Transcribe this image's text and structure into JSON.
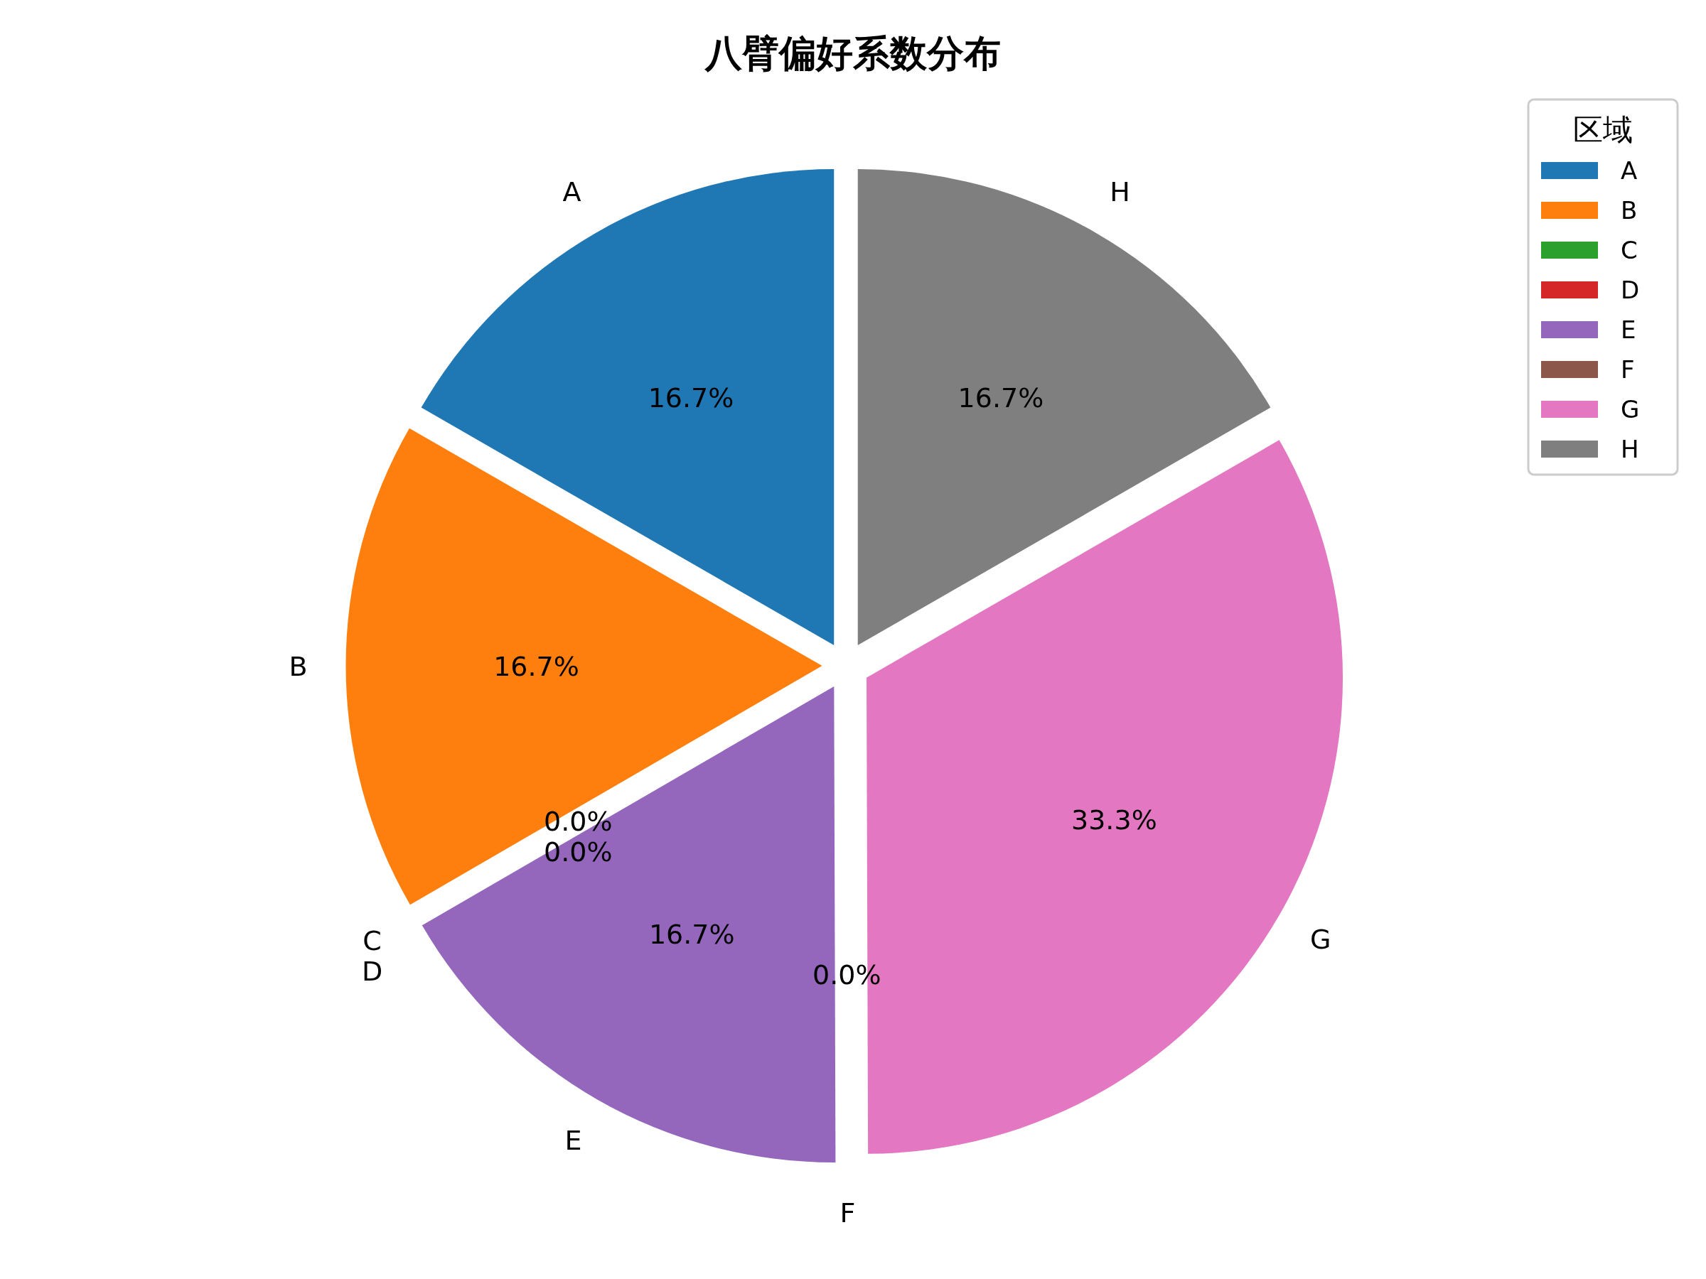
{
  "chart_data": {
    "type": "pie",
    "title": "八臂偏好系数分布",
    "legend_title": "区域",
    "legend": "top right",
    "categories": [
      "A",
      "B",
      "C",
      "D",
      "E",
      "F",
      "G",
      "H"
    ],
    "values": [
      16.7,
      16.7,
      0,
      0,
      16.7,
      0,
      33.3,
      16.7
    ],
    "value_labels": [
      "16.7%",
      "16.7%",
      "0.0%",
      "0.0%",
      "16.7%",
      "0.0%",
      "33.3%",
      "16.7%"
    ],
    "colors": [
      "#1f77b4",
      "#ff7f0e",
      "#2ca02c",
      "#d62728",
      "#9467bd",
      "#8c564b",
      "#e377c2",
      "#7f7f7f"
    ]
  }
}
